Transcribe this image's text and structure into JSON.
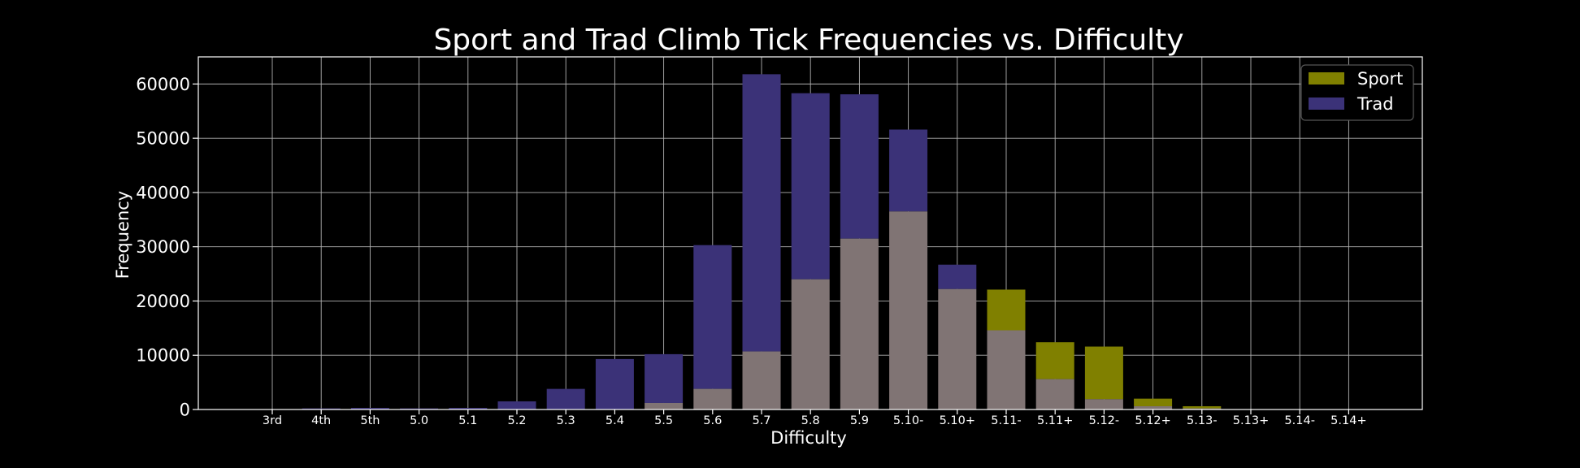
{
  "chart_data": {
    "type": "bar",
    "title": "Sport and Trad Climb Tick Frequencies vs. Difficulty",
    "xlabel": "Difficulty",
    "ylabel": "Frequency",
    "ylim": [
      0,
      65000
    ],
    "yticks": [
      0,
      10000,
      20000,
      30000,
      40000,
      50000,
      60000
    ],
    "grid": true,
    "legend_position": "top-right",
    "categories": [
      "3rd",
      "4th",
      "5th",
      "5.0",
      "5.1",
      "5.2",
      "5.3",
      "5.4",
      "5.5",
      "5.6",
      "5.7",
      "5.8",
      "5.9",
      "5.10-",
      "5.10+",
      "5.11-",
      "5.11+",
      "5.12-",
      "5.12+",
      "5.13-",
      "5.13+",
      "5.14-",
      "5.14+"
    ],
    "series": [
      {
        "name": "Sport",
        "color": "#808000",
        "values": [
          0,
          0,
          0,
          0,
          0,
          0,
          0,
          0,
          1200,
          3800,
          10700,
          24000,
          31500,
          36500,
          22200,
          22100,
          12400,
          11600,
          2000,
          600,
          50,
          20,
          10
        ]
      },
      {
        "name": "Trad",
        "color": "#3b3278",
        "values": [
          0,
          200,
          300,
          200,
          300,
          1500,
          3800,
          9300,
          10200,
          30300,
          61800,
          58300,
          58100,
          51600,
          26700,
          14600,
          5600,
          1900,
          600,
          200,
          50,
          20,
          10
        ]
      }
    ],
    "overlap_color": "#807474"
  }
}
